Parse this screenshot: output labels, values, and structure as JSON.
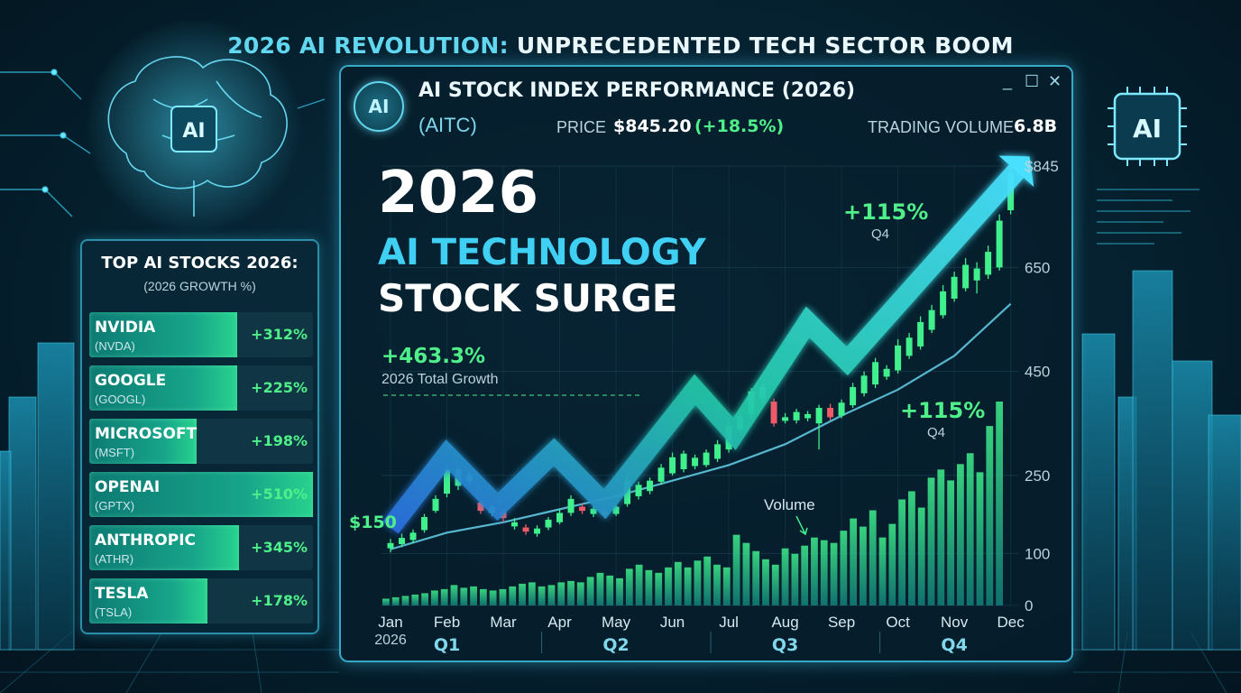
{
  "headline": {
    "accent": "2026 AI REVOLUTION:",
    "rest": " UNPRECEDENTED TECH SECTOR BOOM"
  },
  "top_stocks": {
    "title": "TOP AI STOCKS 2026:",
    "subtitle": "(2026 GROWTH %)",
    "items": [
      {
        "name": "NVIDIA",
        "ticker": "(NVDA)",
        "growth": "+312%",
        "fill": 0.66
      },
      {
        "name": "GOOGLE",
        "ticker": "(GOOGL)",
        "growth": "+225%",
        "fill": 0.66
      },
      {
        "name": "MICROSOFT",
        "ticker": "(MSFT)",
        "growth": "+198%",
        "fill": 0.48
      },
      {
        "name": "OPENAI",
        "ticker": "(GPTX)",
        "growth": "+510%",
        "fill": 1.0
      },
      {
        "name": "ANTHROPIC",
        "ticker": "(ATHR)",
        "growth": "+345%",
        "fill": 0.67
      },
      {
        "name": "TESLA",
        "ticker": "(TSLA)",
        "growth": "+178%",
        "fill": 0.53
      }
    ]
  },
  "window": {
    "badge": "AI",
    "title": "AI STOCK INDEX PERFORMANCE (2026)",
    "ticker": "(AITC)",
    "price_label": "PRICE",
    "price_value": "$845.20",
    "price_change": "(+18.5%)",
    "volume_label": "TRADING VOLUME",
    "volume_value": "6.8B",
    "controls": {
      "minimize": "_",
      "maximize": "☐",
      "close": "✕"
    }
  },
  "hero": {
    "line1": "2026",
    "line2": "AI TECHNOLOGY",
    "line3": "STOCK SURGE"
  },
  "decor": {
    "chip_label": "AI",
    "brain_chip_label": "AI"
  },
  "chart_data": {
    "type": "candlestick+bar",
    "x_months": [
      "Jan",
      "Feb",
      "Mar",
      "Apr",
      "May",
      "Jun",
      "Jul",
      "Aug",
      "Sep",
      "Oct",
      "Nov",
      "Dec"
    ],
    "x_year_label": "2026",
    "quarters": [
      "Q1",
      "Q2",
      "Q3",
      "Q4"
    ],
    "y_ticks": [
      "$845",
      "650",
      "450",
      "250",
      "100",
      "0"
    ],
    "y_tick_values": [
      845,
      650,
      450,
      250,
      100,
      0
    ],
    "ylim": [
      0,
      845
    ],
    "annotations": {
      "start_price": "$150",
      "total_growth": "+463.3%",
      "total_growth_label": "2026 Total Growth",
      "q4_growth_top": "+115%",
      "q4_label_top": "Q4",
      "q4_growth_mid": "+115%",
      "q4_label_mid": "Q4",
      "volume_label": "Volume"
    },
    "trend_arrow": [
      {
        "x": 0.0,
        "y": 150
      },
      {
        "x": 1.0,
        "y": 290
      },
      {
        "x": 1.9,
        "y": 190
      },
      {
        "x": 2.9,
        "y": 295
      },
      {
        "x": 3.8,
        "y": 195
      },
      {
        "x": 5.4,
        "y": 415
      },
      {
        "x": 6.1,
        "y": 330
      },
      {
        "x": 7.4,
        "y": 545
      },
      {
        "x": 8.1,
        "y": 470
      },
      {
        "x": 11.1,
        "y": 835
      }
    ],
    "moving_average": [
      {
        "x": 0.0,
        "y": 108
      },
      {
        "x": 1.0,
        "y": 140
      },
      {
        "x": 2.0,
        "y": 160
      },
      {
        "x": 3.0,
        "y": 185
      },
      {
        "x": 4.0,
        "y": 210
      },
      {
        "x": 5.0,
        "y": 240
      },
      {
        "x": 6.0,
        "y": 270
      },
      {
        "x": 7.0,
        "y": 310
      },
      {
        "x": 8.0,
        "y": 365
      },
      {
        "x": 9.0,
        "y": 415
      },
      {
        "x": 10.0,
        "y": 480
      },
      {
        "x": 11.0,
        "y": 580
      }
    ],
    "candles": [
      {
        "x": 0.0,
        "o": 110,
        "c": 120,
        "h": 128,
        "l": 102
      },
      {
        "x": 0.2,
        "o": 118,
        "c": 130,
        "h": 138,
        "l": 112
      },
      {
        "x": 0.4,
        "o": 126,
        "c": 140,
        "h": 146,
        "l": 120
      },
      {
        "x": 0.6,
        "o": 145,
        "c": 170,
        "h": 176,
        "l": 140
      },
      {
        "x": 0.8,
        "o": 182,
        "c": 205,
        "h": 212,
        "l": 178
      },
      {
        "x": 1.0,
        "o": 215,
        "c": 262,
        "h": 272,
        "l": 208
      },
      {
        "x": 1.2,
        "o": 230,
        "c": 262,
        "h": 268,
        "l": 222
      },
      {
        "x": 1.4,
        "o": 238,
        "c": 252,
        "h": 258,
        "l": 232
      },
      {
        "x": 1.6,
        "o": 198,
        "c": 182,
        "h": 204,
        "l": 176
      },
      {
        "x": 1.8,
        "o": 178,
        "c": 190,
        "h": 196,
        "l": 172
      },
      {
        "x": 2.0,
        "o": 180,
        "c": 168,
        "h": 186,
        "l": 160
      },
      {
        "x": 2.2,
        "o": 152,
        "c": 160,
        "h": 168,
        "l": 146
      },
      {
        "x": 2.4,
        "o": 150,
        "c": 142,
        "h": 156,
        "l": 136
      },
      {
        "x": 2.6,
        "o": 138,
        "c": 148,
        "h": 154,
        "l": 132
      },
      {
        "x": 2.8,
        "o": 150,
        "c": 165,
        "h": 170,
        "l": 145
      },
      {
        "x": 3.0,
        "o": 160,
        "c": 178,
        "h": 186,
        "l": 156
      },
      {
        "x": 3.2,
        "o": 178,
        "c": 205,
        "h": 212,
        "l": 172
      },
      {
        "x": 3.4,
        "o": 190,
        "c": 182,
        "h": 196,
        "l": 176
      },
      {
        "x": 3.6,
        "o": 176,
        "c": 186,
        "h": 190,
        "l": 170
      },
      {
        "x": 3.8,
        "o": 180,
        "c": 174,
        "h": 186,
        "l": 168
      },
      {
        "x": 4.0,
        "o": 176,
        "c": 190,
        "h": 196,
        "l": 172
      },
      {
        "x": 4.2,
        "o": 195,
        "c": 240,
        "h": 252,
        "l": 190
      },
      {
        "x": 4.4,
        "o": 210,
        "c": 232,
        "h": 238,
        "l": 204
      },
      {
        "x": 4.6,
        "o": 220,
        "c": 240,
        "h": 246,
        "l": 214
      },
      {
        "x": 4.8,
        "o": 238,
        "c": 265,
        "h": 272,
        "l": 232
      },
      {
        "x": 5.0,
        "o": 254,
        "c": 285,
        "h": 294,
        "l": 250
      },
      {
        "x": 5.2,
        "o": 262,
        "c": 292,
        "h": 298,
        "l": 256
      },
      {
        "x": 5.4,
        "o": 268,
        "c": 284,
        "h": 290,
        "l": 262
      },
      {
        "x": 5.6,
        "o": 270,
        "c": 294,
        "h": 300,
        "l": 266
      },
      {
        "x": 5.8,
        "o": 282,
        "c": 310,
        "h": 318,
        "l": 276
      },
      {
        "x": 6.0,
        "o": 300,
        "c": 345,
        "h": 352,
        "l": 294
      },
      {
        "x": 6.2,
        "o": 338,
        "c": 364,
        "h": 370,
        "l": 332
      },
      {
        "x": 6.4,
        "o": 368,
        "c": 412,
        "h": 418,
        "l": 360
      },
      {
        "x": 6.6,
        "o": 398,
        "c": 420,
        "h": 428,
        "l": 392
      },
      {
        "x": 6.8,
        "o": 392,
        "c": 350,
        "h": 398,
        "l": 344
      },
      {
        "x": 7.0,
        "o": 355,
        "c": 362,
        "h": 370,
        "l": 350
      },
      {
        "x": 7.2,
        "o": 356,
        "c": 372,
        "h": 378,
        "l": 350
      },
      {
        "x": 7.4,
        "o": 360,
        "c": 368,
        "h": 374,
        "l": 354
      },
      {
        "x": 7.6,
        "o": 350,
        "c": 380,
        "h": 386,
        "l": 300
      },
      {
        "x": 7.8,
        "o": 380,
        "c": 362,
        "h": 388,
        "l": 356
      },
      {
        "x": 8.0,
        "o": 365,
        "c": 390,
        "h": 396,
        "l": 360
      },
      {
        "x": 8.2,
        "o": 385,
        "c": 420,
        "h": 428,
        "l": 380
      },
      {
        "x": 8.4,
        "o": 408,
        "c": 442,
        "h": 450,
        "l": 402
      },
      {
        "x": 8.6,
        "o": 425,
        "c": 468,
        "h": 476,
        "l": 418
      },
      {
        "x": 8.8,
        "o": 440,
        "c": 455,
        "h": 462,
        "l": 434
      },
      {
        "x": 9.0,
        "o": 452,
        "c": 500,
        "h": 512,
        "l": 446
      },
      {
        "x": 9.2,
        "o": 480,
        "c": 515,
        "h": 524,
        "l": 474
      },
      {
        "x": 9.4,
        "o": 498,
        "c": 545,
        "h": 556,
        "l": 492
      },
      {
        "x": 9.6,
        "o": 530,
        "c": 568,
        "h": 578,
        "l": 524
      },
      {
        "x": 9.8,
        "o": 558,
        "c": 604,
        "h": 616,
        "l": 552
      },
      {
        "x": 10.0,
        "o": 590,
        "c": 632,
        "h": 642,
        "l": 584
      },
      {
        "x": 10.2,
        "o": 610,
        "c": 655,
        "h": 668,
        "l": 604
      },
      {
        "x": 10.4,
        "o": 625,
        "c": 648,
        "h": 660,
        "l": 600
      },
      {
        "x": 10.6,
        "o": 636,
        "c": 680,
        "h": 692,
        "l": 628
      },
      {
        "x": 10.8,
        "o": 650,
        "c": 740,
        "h": 752,
        "l": 644
      },
      {
        "x": 11.0,
        "o": 760,
        "c": 830,
        "h": 845,
        "l": 752
      }
    ],
    "volume_bars": [
      5,
      6,
      7,
      8,
      9,
      11,
      12,
      15,
      13,
      14,
      12,
      11,
      12,
      14,
      16,
      17,
      14,
      15,
      17,
      18,
      17,
      21,
      24,
      22,
      20,
      27,
      30,
      26,
      24,
      28,
      32,
      28,
      33,
      36,
      30,
      28,
      52,
      46,
      40,
      34,
      30,
      42,
      38,
      44,
      50,
      48,
      46,
      55,
      64,
      58,
      70,
      50,
      60,
      78,
      84,
      72,
      94,
      100,
      92,
      104,
      112,
      98,
      132,
      150
    ],
    "volume_max": 150
  }
}
